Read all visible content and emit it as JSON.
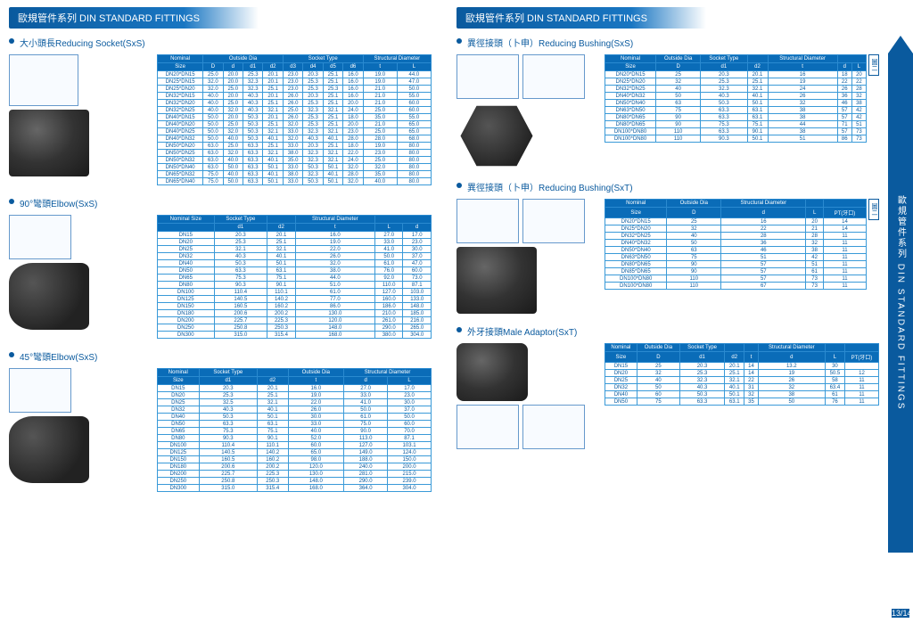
{
  "header": "歐規管件系列 DIN STANDARD FITTINGS",
  "sidebar": "歐規管件系列 DIN STANDARD FITTINGS",
  "pagenum": "13/14",
  "s1": {
    "title": "大小頭長Reducing Socket(SxS)",
    "h1": [
      "Nominal",
      "Outside Dia",
      "Socket Type",
      "Structural Diameter"
    ],
    "h2": [
      "Size",
      "D",
      "d",
      "d1",
      "d2",
      "d3",
      "d4",
      "d5",
      "d6",
      "t",
      "L"
    ],
    "rows": [
      [
        "DN20*DN15",
        "25.0",
        "20.0",
        "25.3",
        "20.1",
        "23.0",
        "20.3",
        "25.1",
        "16.0",
        "19.0",
        "44.0"
      ],
      [
        "DN25*DN15",
        "32.0",
        "20.0",
        "32.3",
        "20.1",
        "23.0",
        "25.3",
        "25.1",
        "16.0",
        "19.0",
        "47.0"
      ],
      [
        "DN25*DN20",
        "32.0",
        "25.0",
        "32.3",
        "25.1",
        "23.0",
        "25.3",
        "25.3",
        "16.0",
        "21.0",
        "50.0"
      ],
      [
        "DN32*DN15",
        "40.0",
        "20.0",
        "40.3",
        "20.1",
        "26.0",
        "20.3",
        "25.1",
        "16.0",
        "21.0",
        "55.0"
      ],
      [
        "DN32*DN20",
        "40.0",
        "25.0",
        "40.3",
        "25.1",
        "26.0",
        "25.3",
        "25.1",
        "20.0",
        "21.0",
        "60.0"
      ],
      [
        "DN32*DN25",
        "40.0",
        "32.0",
        "40.3",
        "32.1",
        "25.0",
        "32.3",
        "32.1",
        "24.0",
        "25.0",
        "60.0"
      ],
      [
        "DN40*DN15",
        "50.0",
        "20.0",
        "50.3",
        "20.1",
        "26.0",
        "25.3",
        "25.1",
        "18.0",
        "35.0",
        "55.0"
      ],
      [
        "DN40*DN20",
        "50.0",
        "25.0",
        "50.3",
        "25.1",
        "32.0",
        "25.3",
        "25.1",
        "20.0",
        "21.0",
        "65.0"
      ],
      [
        "DN40*DN25",
        "50.0",
        "32.0",
        "50.3",
        "32.1",
        "33.0",
        "32.3",
        "32.1",
        "23.0",
        "25.0",
        "65.0"
      ],
      [
        "DN40*DN32",
        "50.0",
        "40.0",
        "50.3",
        "40.1",
        "32.0",
        "40.3",
        "40.1",
        "28.0",
        "28.0",
        "68.0"
      ],
      [
        "DN50*DN20",
        "63.0",
        "25.0",
        "63.3",
        "25.1",
        "33.0",
        "20.3",
        "25.1",
        "18.0",
        "19.0",
        "80.0"
      ],
      [
        "DN50*DN25",
        "63.0",
        "32.0",
        "63.3",
        "32.1",
        "38.0",
        "32.3",
        "32.1",
        "22.0",
        "23.0",
        "80.0"
      ],
      [
        "DN50*DN32",
        "63.0",
        "40.0",
        "63.3",
        "40.1",
        "35.0",
        "32.3",
        "32.1",
        "24.0",
        "25.0",
        "80.0"
      ],
      [
        "DN50*DN40",
        "63.0",
        "50.0",
        "63.3",
        "50.1",
        "33.0",
        "50.3",
        "50.1",
        "32.0",
        "32.0",
        "80.0"
      ],
      [
        "DN65*DN32",
        "75.0",
        "40.0",
        "63.3",
        "40.1",
        "38.0",
        "32.3",
        "40.1",
        "28.0",
        "35.0",
        "80.0"
      ],
      [
        "DN65*DN40",
        "75.0",
        "50.0",
        "63.3",
        "50.1",
        "33.0",
        "50.3",
        "50.1",
        "32.0",
        "40.0",
        "80.0"
      ]
    ]
  },
  "s2": {
    "title": "90°彎頭Elbow(SxS)",
    "h1": [
      "Nominal Size",
      "Socket Type",
      "",
      "Structural Diameter",
      ""
    ],
    "h2": [
      "",
      "d1",
      "d2",
      "t",
      "L",
      "d"
    ],
    "rows": [
      [
        "DN15",
        "20.3",
        "20.1",
        "16.0",
        "27.0",
        "17.0"
      ],
      [
        "DN20",
        "25.3",
        "25.1",
        "19.0",
        "33.0",
        "23.0"
      ],
      [
        "DN25",
        "32.1",
        "32.1",
        "22.0",
        "41.0",
        "30.0"
      ],
      [
        "DN32",
        "40.3",
        "40.1",
        "26.0",
        "50.0",
        "37.0"
      ],
      [
        "DN40",
        "50.3",
        "50.1",
        "32.0",
        "61.0",
        "47.0"
      ],
      [
        "DN50",
        "63.3",
        "63.1",
        "38.0",
        "76.0",
        "60.0"
      ],
      [
        "DN65",
        "75.3",
        "75.1",
        "44.0",
        "92.0",
        "73.0"
      ],
      [
        "DN80",
        "90.3",
        "90.1",
        "51.0",
        "110.0",
        "87.1"
      ],
      [
        "DN100",
        "110.4",
        "110.1",
        "61.0",
        "127.0",
        "103.0"
      ],
      [
        "DN125",
        "140.5",
        "140.2",
        "77.0",
        "160.0",
        "133.0"
      ],
      [
        "DN150",
        "160.5",
        "160.2",
        "86.0",
        "186.0",
        "148.0"
      ],
      [
        "DN180",
        "200.6",
        "200.2",
        "130.0",
        "210.0",
        "185.0"
      ],
      [
        "DN200",
        "225.7",
        "225.3",
        "120.0",
        "261.0",
        "216.0"
      ],
      [
        "DN250",
        "250.8",
        "250.3",
        "148.0",
        "290.0",
        "265.0"
      ],
      [
        "DN300",
        "315.0",
        "315.4",
        "168.0",
        "380.0",
        "304.0"
      ]
    ]
  },
  "s3": {
    "title": "45°彎頭Elbow(SxS)",
    "h1": [
      "Nominal",
      "Socket Type",
      "",
      "Outside Dia",
      "Structural Diameter"
    ],
    "h2": [
      "Size",
      "d1",
      "d2",
      "t",
      "d",
      "L"
    ],
    "rows": [
      [
        "DN15",
        "20.3",
        "20.1",
        "16.0",
        "27.0",
        "17.0"
      ],
      [
        "DN20",
        "25.3",
        "25.1",
        "19.0",
        "33.0",
        "23.0"
      ],
      [
        "DN25",
        "32.5",
        "32.1",
        "22.0",
        "41.0",
        "30.0"
      ],
      [
        "DN32",
        "40.3",
        "40.1",
        "26.0",
        "50.0",
        "37.0"
      ],
      [
        "DN40",
        "50.3",
        "50.1",
        "30.0",
        "61.0",
        "50.0"
      ],
      [
        "DN50",
        "63.3",
        "63.1",
        "33.0",
        "75.0",
        "60.0"
      ],
      [
        "DN65",
        "75.3",
        "75.1",
        "40.0",
        "90.0",
        "70.0"
      ],
      [
        "DN80",
        "90.3",
        "90.1",
        "52.0",
        "113.0",
        "87.1"
      ],
      [
        "DN100",
        "110.4",
        "110.1",
        "60.0",
        "127.0",
        "103.1"
      ],
      [
        "DN125",
        "140.5",
        "140.2",
        "65.0",
        "149.0",
        "124.0"
      ],
      [
        "DN150",
        "160.5",
        "160.2",
        "98.0",
        "188.0",
        "150.0"
      ],
      [
        "DN180",
        "200.6",
        "200.2",
        "120.0",
        "240.0",
        "200.0"
      ],
      [
        "DN200",
        "225.7",
        "225.3",
        "130.0",
        "281.0",
        "215.0"
      ],
      [
        "DN250",
        "250.8",
        "250.3",
        "148.0",
        "290.0",
        "239.0"
      ],
      [
        "DN300",
        "315.0",
        "315.4",
        "168.0",
        "364.0",
        "304.0"
      ]
    ]
  },
  "s4": {
    "title": "異徑接頭（卜申）Reducing Bushing(SxS)",
    "h1": [
      "Nominal",
      "Outside Dia",
      "Socket Type",
      "",
      "Structural Diameter",
      ""
    ],
    "h2": [
      "Size",
      "D",
      "d1",
      "d2",
      "t",
      "d",
      "L"
    ],
    "side": "圖二",
    "rows": [
      [
        "DN20*DN15",
        "25",
        "20.3",
        "20.1",
        "16",
        "18",
        "20"
      ],
      [
        "DN25*DN20",
        "32",
        "25.3",
        "25.1",
        "19",
        "22",
        "22"
      ],
      [
        "DN32*DN25",
        "40",
        "32.3",
        "32.1",
        "24",
        "26",
        "28"
      ],
      [
        "DN40*DN32",
        "50",
        "40.3",
        "40.1",
        "26",
        "36",
        "32"
      ],
      [
        "DN50*DN40",
        "63",
        "50.3",
        "50.1",
        "32",
        "46",
        "38"
      ],
      [
        "DN63*DN50",
        "75",
        "63.3",
        "63.1",
        "38",
        "57",
        "42"
      ],
      [
        "DN80*DN65",
        "90",
        "63.3",
        "63.1",
        "38",
        "57",
        "42"
      ],
      [
        "DN80*DN65",
        "90",
        "75.3",
        "75.1",
        "44",
        "71",
        "51"
      ],
      [
        "DN100*DN80",
        "110",
        "63.3",
        "90.1",
        "38",
        "57",
        "73"
      ],
      [
        "DN100*DN80",
        "110",
        "90.3",
        "50.1",
        "51",
        "86",
        "73"
      ]
    ]
  },
  "s5": {
    "title": "異徑接頭（卜申）Reducing Bushing(SxT)",
    "h1": [
      "Nominal",
      "Outside Dia",
      "Structural Diameter",
      "",
      ""
    ],
    "h2": [
      "Size",
      "D",
      "d",
      "L",
      "PT(牙口)"
    ],
    "side": "圖二",
    "rows": [
      [
        "DN20*DN15",
        "25",
        "16",
        "20",
        "14"
      ],
      [
        "DN25*DN20",
        "32",
        "22",
        "21",
        "14"
      ],
      [
        "DN32*DN25",
        "40",
        "28",
        "28",
        "11"
      ],
      [
        "DN40*DN32",
        "50",
        "36",
        "32",
        "11"
      ],
      [
        "DN50*DN40",
        "63",
        "46",
        "38",
        "11"
      ],
      [
        "DN63*DN50",
        "75",
        "51",
        "42",
        "11"
      ],
      [
        "DN80*DN65",
        "90",
        "57",
        "51",
        "11"
      ],
      [
        "DN85*DN65",
        "90",
        "57",
        "61",
        "11"
      ],
      [
        "DN100*DN80",
        "110",
        "57",
        "73",
        "11"
      ],
      [
        "DN100*DN80",
        "110",
        "67",
        "73",
        "11"
      ]
    ]
  },
  "s6": {
    "title": "外牙接頭Male Adaptor(SxT)",
    "h1": [
      "Nominal",
      "Outside Dia",
      "Socket Type",
      "",
      "",
      "Structural Diameter",
      "",
      ""
    ],
    "h2": [
      "Size",
      "D",
      "d1",
      "d2",
      "t",
      "d",
      "L",
      "PT(牙口)"
    ],
    "rows": [
      [
        "DN15",
        "25",
        "20.3",
        "20.1",
        "14",
        "13.2",
        "30",
        ""
      ],
      [
        "DN20",
        "32",
        "25.3",
        "25.1",
        "14",
        "19",
        "50.5",
        "12"
      ],
      [
        "DN25",
        "40",
        "32.3",
        "32.1",
        "22",
        "26",
        "58",
        "11"
      ],
      [
        "DN32",
        "50",
        "40.3",
        "40.1",
        "31",
        "32",
        "63.4",
        "11"
      ],
      [
        "DN40",
        "60",
        "50.3",
        "50.1",
        "32",
        "38",
        "61",
        "11"
      ],
      [
        "DN50",
        "75",
        "63.3",
        "63.1",
        "35",
        "50",
        "76",
        "11"
      ]
    ]
  }
}
